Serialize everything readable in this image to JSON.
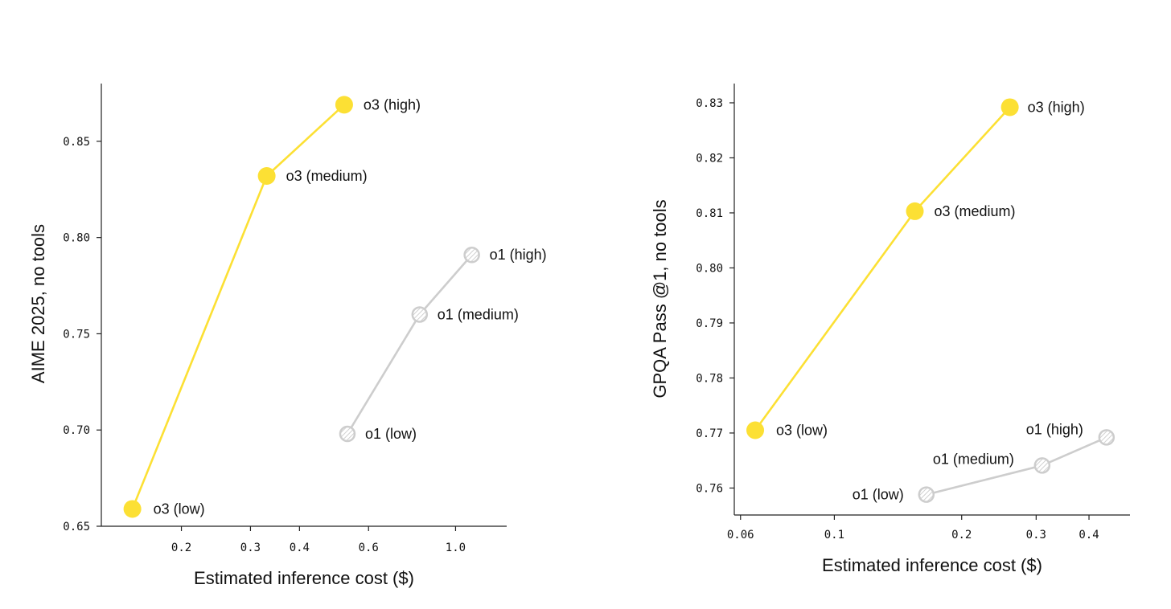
{
  "colors": {
    "o3": "#FCE034",
    "o1": "#CDCDCD",
    "o1_hatch": "#E6E6E6",
    "axis": "#222222"
  },
  "chart_data": [
    {
      "type": "line",
      "xscale": "log",
      "xlabel": "Estimated inference cost ($)",
      "ylabel": "AIME 2025, no tools",
      "xlim": [
        0.125,
        1.35
      ],
      "ylim": [
        0.65,
        0.88
      ],
      "xticks": [
        0.2,
        0.3,
        0.4,
        0.6,
        1.0
      ],
      "xtick_labels": [
        "0.2",
        "0.3",
        "0.4",
        "0.6",
        "1.0"
      ],
      "yticks": [
        0.65,
        0.7,
        0.75,
        0.8,
        0.85
      ],
      "ytick_labels": [
        "0.65",
        "0.70",
        "0.75",
        "0.80",
        "0.85"
      ],
      "series": [
        {
          "name": "o3",
          "style": "o3",
          "points": [
            {
              "x": 0.15,
              "y": 0.659,
              "label": "o3 (low)"
            },
            {
              "x": 0.33,
              "y": 0.832,
              "label": "o3 (medium)"
            },
            {
              "x": 0.52,
              "y": 0.869,
              "label": "o3 (high)"
            }
          ]
        },
        {
          "name": "o1",
          "style": "o1",
          "points": [
            {
              "x": 0.53,
              "y": 0.698,
              "label": "o1 (low)"
            },
            {
              "x": 0.81,
              "y": 0.76,
              "label": "o1 (medium)"
            },
            {
              "x": 1.1,
              "y": 0.791,
              "label": "o1 (high)"
            }
          ]
        }
      ]
    },
    {
      "type": "line",
      "xscale": "log",
      "xlabel": "Estimated inference cost ($)",
      "ylabel": "GPQA Pass @1, no tools",
      "xlim": [
        0.058,
        0.5
      ],
      "ylim": [
        0.7551,
        0.8335
      ],
      "xticks": [
        0.06,
        0.1,
        0.2,
        0.3,
        0.4
      ],
      "xtick_labels": [
        "0.06",
        "0.1",
        "0.2",
        "0.3",
        "0.4"
      ],
      "yticks": [
        0.76,
        0.77,
        0.78,
        0.79,
        0.8,
        0.81,
        0.82,
        0.83
      ],
      "ytick_labels": [
        "0.76",
        "0.77",
        "0.78",
        "0.79",
        "0.80",
        "0.81",
        "0.82",
        "0.83"
      ],
      "series": [
        {
          "name": "o3",
          "style": "o3",
          "points": [
            {
              "x": 0.065,
              "y": 0.7705,
              "label": "o3 (low)"
            },
            {
              "x": 0.155,
              "y": 0.8103,
              "label": "o3 (medium)"
            },
            {
              "x": 0.26,
              "y": 0.8292,
              "label": "o3 (high)"
            }
          ]
        },
        {
          "name": "o1",
          "style": "o1",
          "points": [
            {
              "x": 0.165,
              "y": 0.7588,
              "label": "o1 (low)"
            },
            {
              "x": 0.31,
              "y": 0.7641,
              "label": "o1 (medium)"
            },
            {
              "x": 0.44,
              "y": 0.7692,
              "label": "o1 (high)"
            }
          ]
        }
      ]
    }
  ]
}
